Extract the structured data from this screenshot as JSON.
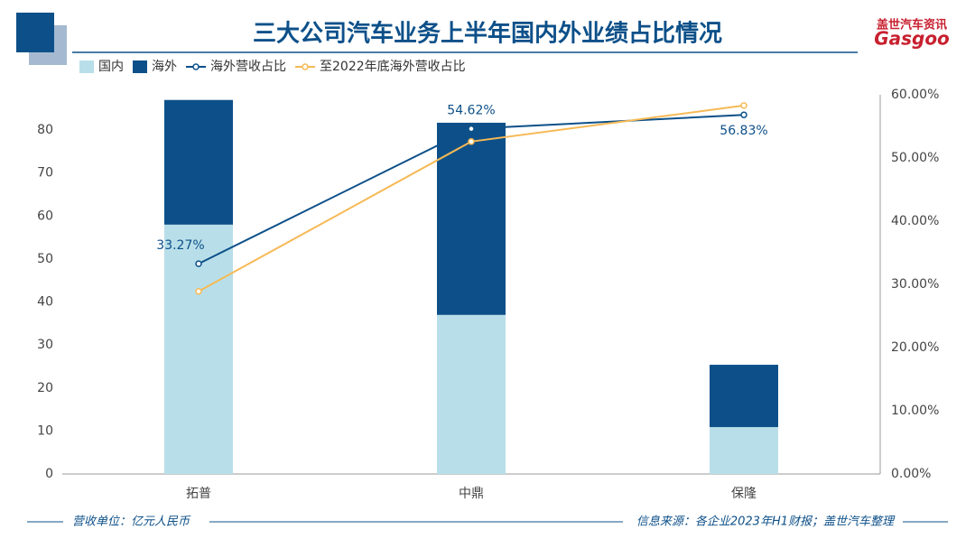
{
  "header": {
    "title": "三大公司汽车业务上半年国内外业绩占比情况",
    "logo": "盖世汽车资讯",
    "logo_word": "Gasgoo"
  },
  "chart_data": {
    "type": "bar",
    "stacked": true,
    "categories": [
      "拓普",
      "中鼎",
      "保隆"
    ],
    "series": [
      {
        "name": "国内",
        "color": "#b8dfe9",
        "values": [
          58.0,
          37.0,
          10.9
        ]
      },
      {
        "name": "海外",
        "color": "#0d5089",
        "values": [
          29.0,
          44.7,
          14.5
        ]
      },
      {
        "name": "海外营收占比",
        "type": "line",
        "axis": "y2",
        "color": "#0d5089",
        "values": [
          33.27,
          54.62,
          56.83
        ],
        "value_labels": [
          "33.27%",
          "54.62%",
          "56.83%"
        ]
      },
      {
        "name": "至2022年底海外营收占比",
        "type": "line",
        "axis": "y2",
        "color": "#f6b955",
        "values": [
          28.9,
          52.6,
          58.3
        ]
      }
    ],
    "ylim": [
      0,
      88.2
    ],
    "yticks": [
      0,
      10,
      20,
      30,
      40,
      50,
      60,
      70,
      80
    ],
    "y2lim": [
      0,
      60
    ],
    "y2ticks": [
      {
        "value": 0,
        "label": "0.00%"
      },
      {
        "value": 10,
        "label": "10.00%"
      },
      {
        "value": 20,
        "label": "20.00%"
      },
      {
        "value": 30,
        "label": "30.00%"
      },
      {
        "value": 40,
        "label": "40.00%"
      },
      {
        "value": 50,
        "label": "50.00%"
      },
      {
        "value": 60,
        "label": "60.00%"
      }
    ]
  },
  "footer": {
    "unit": "营收单位：亿元人民币",
    "source": "信息来源：各企业2023年H1财报；盖世汽车整理"
  }
}
